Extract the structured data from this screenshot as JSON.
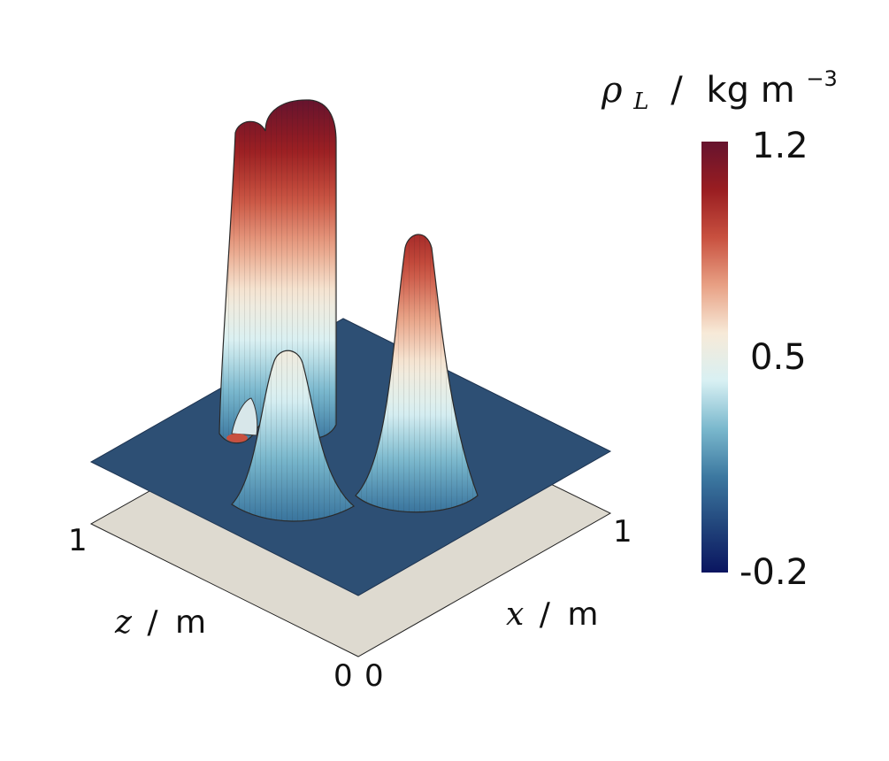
{
  "chart_data": {
    "type": "surface",
    "quantity": "ρ",
    "quantity_sub": "L",
    "unit": "kg m",
    "unit_exp": "−3",
    "x_axis": {
      "symbol": "x",
      "unit": "m",
      "range": [
        0,
        1
      ],
      "tick_labels": [
        "0",
        "1"
      ]
    },
    "z_axis": {
      "symbol": "z",
      "unit": "m",
      "range": [
        0,
        1
      ],
      "tick_labels": [
        "0",
        "1"
      ]
    },
    "colorbar": {
      "range": [
        -0.2,
        1.2
      ],
      "tick_labels": [
        "1.2",
        "0.5",
        "-0.2"
      ],
      "colors": [
        "#0a1560",
        "#22467c",
        "#3c78a0",
        "#7ab8cd",
        "#d8f0f3",
        "#f7ead8",
        "#e8a084",
        "#c8503f",
        "#991d21",
        "#66132e"
      ]
    },
    "features": [
      {
        "name": "slotted cylinder",
        "peak": 1.2,
        "x": 0.25,
        "z": 0.5
      },
      {
        "name": "cone",
        "peak": 1.0,
        "x": 0.5,
        "z": 0.25
      },
      {
        "name": "hump",
        "peak": 0.55,
        "x": 0.5,
        "z": 0.75
      }
    ],
    "base_level": 0.1
  }
}
